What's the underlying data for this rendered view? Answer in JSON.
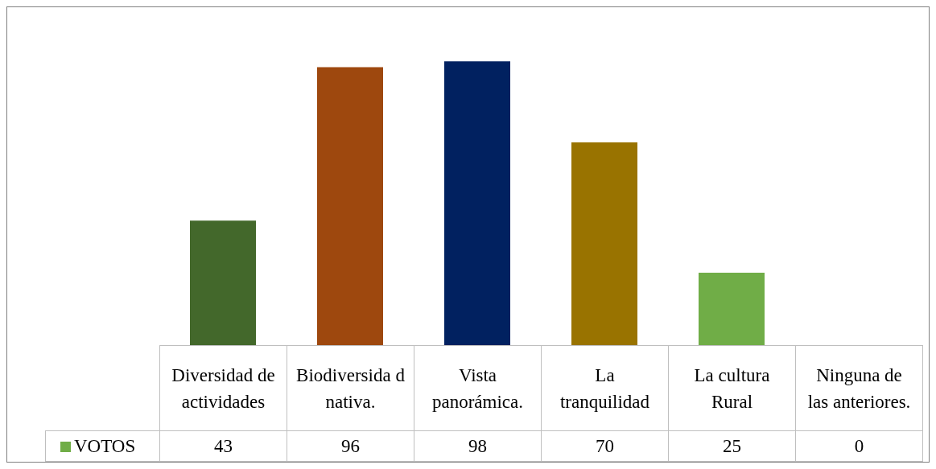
{
  "chart_data": {
    "type": "bar",
    "data_labels": true,
    "categories": [
      "Diversidad de actividades",
      "Biodiversida d nativa.",
      "Vista panorámica.",
      "La tranquilidad",
      "La cultura Rural",
      "Ninguna de las anteriores."
    ],
    "series": [
      {
        "name": "VOTOS",
        "color": "#70ad47",
        "colors": [
          "#43682b",
          "#9e480e",
          "#012160",
          "#997300",
          "#70ad47",
          "#4472c4"
        ],
        "values": [
          43,
          96,
          98,
          70,
          25,
          0
        ]
      }
    ]
  }
}
